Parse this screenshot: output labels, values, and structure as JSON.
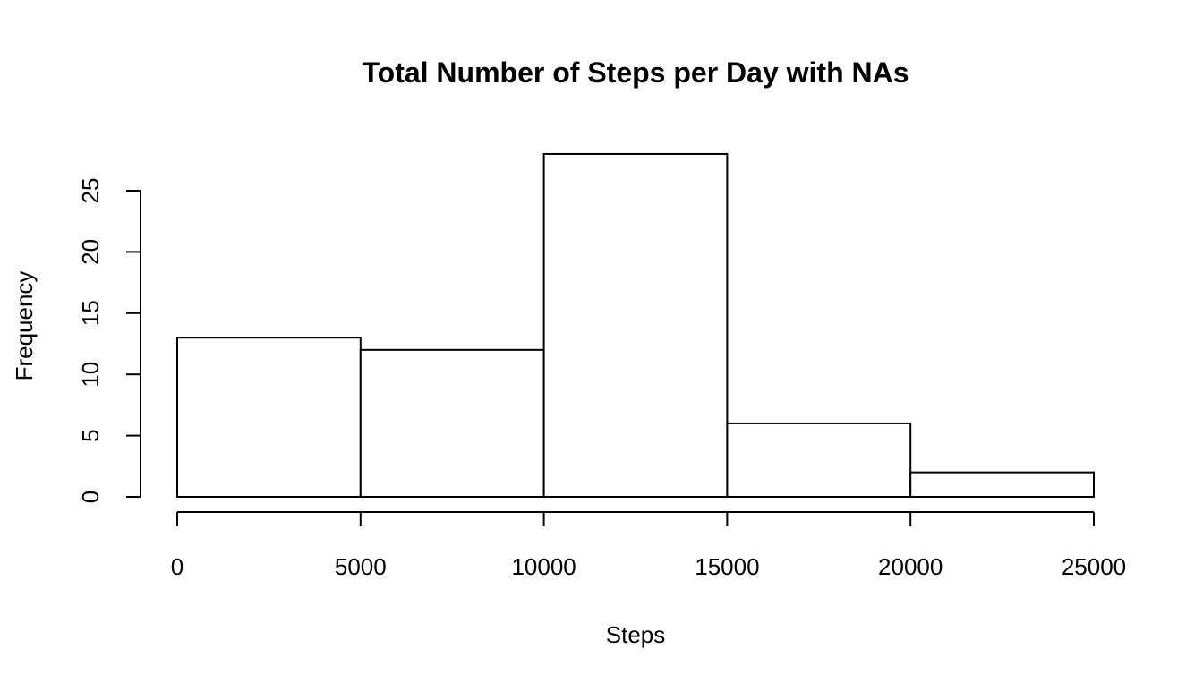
{
  "chart_data": {
    "type": "bar",
    "title": "Total Number of Steps per Day with NAs",
    "xlabel": "Steps",
    "ylabel": "Frequency",
    "bins": [
      [
        0,
        5000
      ],
      [
        5000,
        10000
      ],
      [
        10000,
        15000
      ],
      [
        15000,
        20000
      ],
      [
        20000,
        25000
      ]
    ],
    "values": [
      13,
      12,
      28,
      6,
      2
    ],
    "xlim": [
      0,
      25000
    ],
    "ylim": [
      0,
      28
    ],
    "x_ticks": [
      0,
      5000,
      10000,
      15000,
      20000,
      25000
    ],
    "x_tick_labels": [
      "0",
      "5000",
      "10000",
      "15000",
      "20000",
      "25000"
    ],
    "y_ticks": [
      0,
      5,
      10,
      15,
      20,
      25
    ],
    "y_tick_labels": [
      "0",
      "5",
      "10",
      "15",
      "20",
      "25"
    ],
    "grid": false,
    "legend": "none"
  }
}
